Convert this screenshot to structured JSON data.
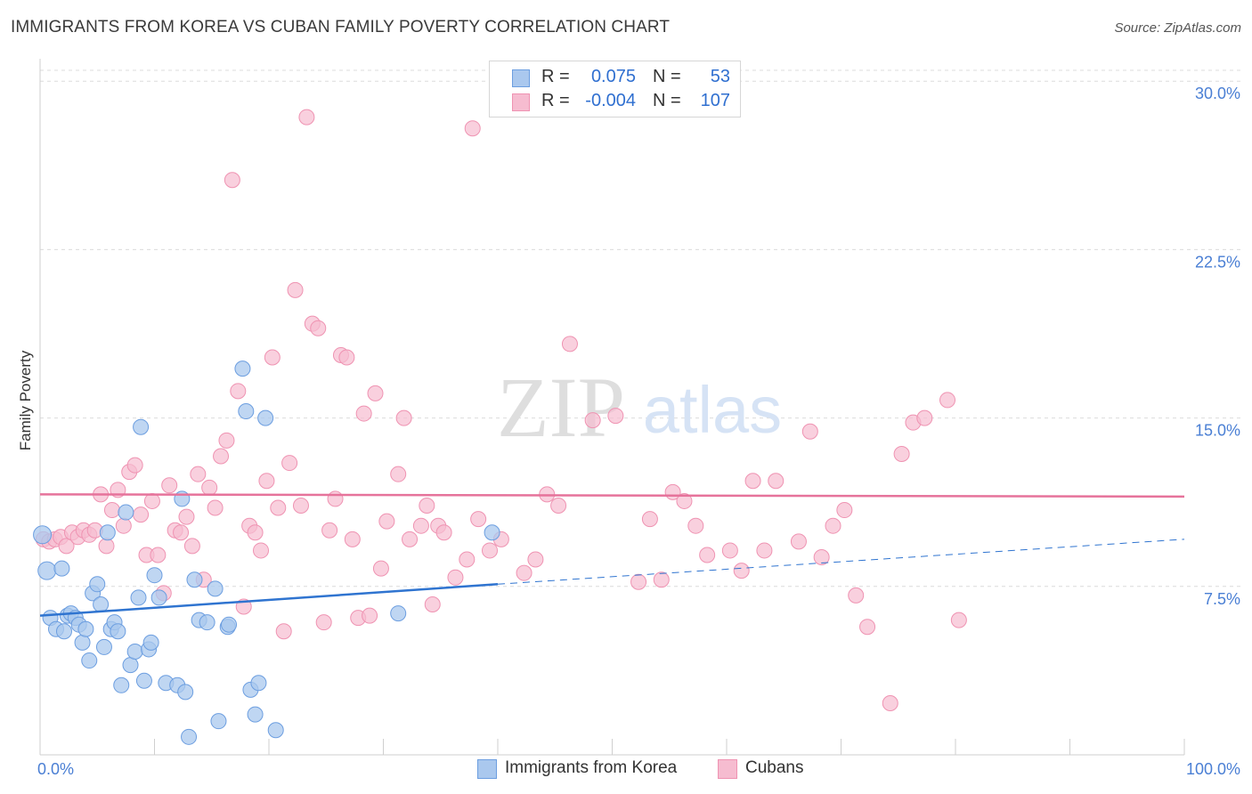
{
  "title": "IMMIGRANTS FROM KOREA VS CUBAN FAMILY POVERTY CORRELATION CHART",
  "source": "Source: ZipAtlas.com",
  "watermark": {
    "zip": "ZIP",
    "atlas": "atlas"
  },
  "legend_top": {
    "rows": [
      {
        "r_label": "R =",
        "r_value": "0.075",
        "n_label": "N =",
        "n_value": "53"
      },
      {
        "r_label": "R =",
        "r_value": "-0.004",
        "n_label": "N =",
        "n_value": "107"
      }
    ]
  },
  "legend_bottom": {
    "items": [
      {
        "label": "Immigrants from Korea"
      },
      {
        "label": "Cubans"
      }
    ]
  },
  "colors": {
    "korea_fill": "#aac8ee",
    "korea_stroke": "#6c9ee0",
    "korea_line": "#2f74d0",
    "cuba_fill": "#f6bcd0",
    "cuba_stroke": "#ef93b2",
    "cuba_line": "#e6739b",
    "axis_text": "#4a7fd4",
    "grid": "#dcdcdc"
  },
  "chart_data": {
    "type": "scatter",
    "title": "IMMIGRANTS FROM KOREA VS CUBAN FAMILY POVERTY CORRELATION CHART",
    "xlabel": "",
    "ylabel": "Family Poverty",
    "xlim": [
      0,
      100
    ],
    "ylim": [
      0,
      31
    ],
    "x_ticks": [
      {
        "value": 0,
        "label": "0.0%"
      },
      {
        "value": 100,
        "label": "100.0%"
      }
    ],
    "x_minor_ticks": [
      0,
      10,
      20,
      30,
      40,
      50,
      60,
      70,
      80,
      90,
      100
    ],
    "y_ticks": [
      {
        "value": 7.5,
        "label": "7.5%"
      },
      {
        "value": 15,
        "label": "15.0%"
      },
      {
        "value": 22.5,
        "label": "22.5%"
      },
      {
        "value": 30,
        "label": "30.0%"
      }
    ],
    "series": [
      {
        "name": "Immigrants from Korea",
        "color": "#aac8ee",
        "points": [
          [
            0.2,
            9.8
          ],
          [
            0.6,
            8.2
          ],
          [
            0.9,
            6.1
          ],
          [
            1.4,
            5.6
          ],
          [
            1.9,
            8.3
          ],
          [
            2.1,
            5.5
          ],
          [
            2.4,
            6.2
          ],
          [
            2.7,
            6.3
          ],
          [
            3.1,
            6.1
          ],
          [
            3.4,
            5.8
          ],
          [
            3.7,
            5.0
          ],
          [
            4.0,
            5.6
          ],
          [
            4.3,
            4.2
          ],
          [
            4.6,
            7.2
          ],
          [
            5.0,
            7.6
          ],
          [
            5.3,
            6.7
          ],
          [
            5.6,
            4.8
          ],
          [
            5.9,
            9.9
          ],
          [
            6.2,
            5.6
          ],
          [
            6.5,
            5.9
          ],
          [
            6.8,
            5.5
          ],
          [
            7.1,
            3.1
          ],
          [
            7.5,
            10.8
          ],
          [
            7.9,
            4.0
          ],
          [
            8.3,
            4.6
          ],
          [
            8.6,
            7.0
          ],
          [
            8.8,
            14.6
          ],
          [
            9.1,
            3.3
          ],
          [
            9.5,
            4.7
          ],
          [
            9.7,
            5.0
          ],
          [
            10.0,
            8.0
          ],
          [
            10.4,
            7.0
          ],
          [
            11.0,
            3.2
          ],
          [
            12.0,
            3.1
          ],
          [
            12.4,
            11.4
          ],
          [
            12.7,
            2.8
          ],
          [
            13.0,
            0.8
          ],
          [
            13.5,
            7.8
          ],
          [
            13.9,
            6.0
          ],
          [
            14.6,
            5.9
          ],
          [
            15.3,
            7.4
          ],
          [
            15.6,
            1.5
          ],
          [
            16.4,
            5.7
          ],
          [
            16.5,
            5.8
          ],
          [
            17.7,
            17.2
          ],
          [
            18.0,
            15.3
          ],
          [
            18.4,
            2.9
          ],
          [
            18.8,
            1.8
          ],
          [
            19.1,
            3.2
          ],
          [
            19.7,
            15.0
          ],
          [
            20.6,
            1.1
          ],
          [
            31.3,
            6.3
          ],
          [
            39.5,
            9.9
          ]
        ],
        "trend": {
          "x0": 0,
          "y0": 6.2,
          "x1": 40,
          "y1": 7.6,
          "dash_x1": 100,
          "dash_y1": 9.6
        }
      },
      {
        "name": "Cubans",
        "color": "#f6bcd0",
        "points": [
          [
            0.3,
            9.6
          ],
          [
            0.8,
            9.5
          ],
          [
            1.3,
            9.6
          ],
          [
            1.8,
            9.7
          ],
          [
            2.3,
            9.3
          ],
          [
            2.8,
            9.9
          ],
          [
            3.3,
            9.7
          ],
          [
            3.8,
            10.0
          ],
          [
            4.3,
            9.8
          ],
          [
            4.8,
            10.0
          ],
          [
            5.3,
            11.6
          ],
          [
            5.8,
            9.3
          ],
          [
            6.3,
            10.9
          ],
          [
            6.8,
            11.8
          ],
          [
            7.3,
            10.2
          ],
          [
            7.8,
            12.6
          ],
          [
            8.3,
            12.9
          ],
          [
            8.8,
            10.7
          ],
          [
            9.3,
            8.9
          ],
          [
            9.8,
            11.3
          ],
          [
            10.3,
            8.9
          ],
          [
            10.8,
            7.2
          ],
          [
            11.3,
            12.0
          ],
          [
            11.8,
            10.0
          ],
          [
            12.3,
            9.9
          ],
          [
            12.8,
            10.6
          ],
          [
            13.3,
            9.3
          ],
          [
            13.8,
            12.5
          ],
          [
            14.3,
            7.8
          ],
          [
            14.8,
            11.9
          ],
          [
            15.3,
            11.0
          ],
          [
            15.8,
            13.3
          ],
          [
            16.3,
            14.0
          ],
          [
            16.8,
            25.6
          ],
          [
            17.3,
            16.2
          ],
          [
            17.8,
            6.6
          ],
          [
            18.3,
            10.2
          ],
          [
            18.8,
            9.9
          ],
          [
            19.3,
            9.1
          ],
          [
            19.8,
            12.2
          ],
          [
            20.3,
            17.7
          ],
          [
            20.8,
            11.0
          ],
          [
            21.3,
            5.5
          ],
          [
            21.8,
            13.0
          ],
          [
            22.3,
            20.7
          ],
          [
            22.8,
            11.1
          ],
          [
            23.3,
            28.4
          ],
          [
            23.8,
            19.2
          ],
          [
            24.3,
            19.0
          ],
          [
            24.8,
            5.9
          ],
          [
            25.3,
            10.0
          ],
          [
            25.8,
            11.4
          ],
          [
            26.3,
            17.8
          ],
          [
            26.8,
            17.7
          ],
          [
            27.3,
            9.6
          ],
          [
            27.8,
            6.1
          ],
          [
            28.3,
            15.2
          ],
          [
            28.8,
            6.2
          ],
          [
            29.3,
            16.1
          ],
          [
            29.8,
            8.3
          ],
          [
            30.3,
            10.4
          ],
          [
            31.3,
            12.5
          ],
          [
            31.8,
            15.0
          ],
          [
            32.3,
            9.6
          ],
          [
            33.3,
            10.2
          ],
          [
            33.8,
            11.1
          ],
          [
            34.3,
            6.7
          ],
          [
            34.8,
            10.2
          ],
          [
            35.3,
            9.9
          ],
          [
            36.3,
            7.9
          ],
          [
            37.3,
            8.7
          ],
          [
            37.8,
            27.9
          ],
          [
            38.3,
            10.5
          ],
          [
            39.3,
            9.1
          ],
          [
            40.3,
            9.6
          ],
          [
            42.3,
            8.1
          ],
          [
            43.3,
            8.7
          ],
          [
            44.3,
            11.6
          ],
          [
            45.3,
            11.1
          ],
          [
            46.3,
            18.3
          ],
          [
            48.3,
            14.9
          ],
          [
            50.3,
            15.1
          ],
          [
            52.3,
            7.7
          ],
          [
            53.3,
            10.5
          ],
          [
            54.3,
            7.8
          ],
          [
            55.3,
            11.7
          ],
          [
            56.3,
            11.3
          ],
          [
            57.3,
            10.2
          ],
          [
            58.3,
            8.9
          ],
          [
            60.3,
            9.1
          ],
          [
            61.3,
            8.2
          ],
          [
            62.3,
            12.2
          ],
          [
            63.3,
            9.1
          ],
          [
            64.3,
            12.2
          ],
          [
            66.3,
            9.5
          ],
          [
            67.3,
            14.4
          ],
          [
            68.3,
            8.8
          ],
          [
            69.3,
            10.2
          ],
          [
            70.3,
            10.9
          ],
          [
            71.3,
            7.1
          ],
          [
            72.3,
            5.7
          ],
          [
            74.3,
            2.3
          ],
          [
            75.3,
            13.4
          ],
          [
            76.3,
            14.8
          ],
          [
            77.3,
            15.0
          ],
          [
            79.3,
            15.8
          ],
          [
            80.3,
            6.0
          ]
        ],
        "trend": {
          "x0": 0,
          "y0": 11.6,
          "x1": 100,
          "y1": 11.5
        }
      }
    ]
  }
}
